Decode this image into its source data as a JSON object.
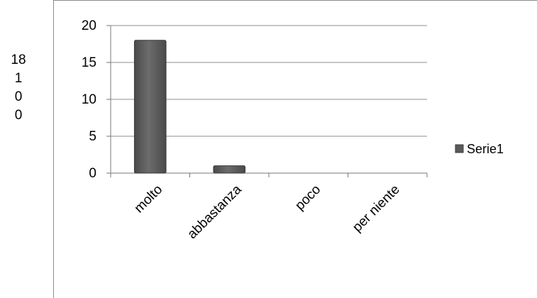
{
  "side_values": [
    "18",
    "1",
    "0",
    "0"
  ],
  "chart_data": {
    "type": "bar",
    "categories": [
      "molto",
      "abbastanza",
      "poco",
      "per niente"
    ],
    "series": [
      {
        "name": "Serie1",
        "values": [
          18,
          1,
          0,
          0
        ]
      }
    ],
    "y_ticks": [
      "0",
      "5",
      "10",
      "15",
      "20"
    ],
    "ylim": [
      0,
      20
    ],
    "grid": true,
    "legend": "right",
    "colors": {
      "bar": "#5a5a5a",
      "bar_edge": "#3a3a3a",
      "grid": "#8c8c8c"
    }
  }
}
